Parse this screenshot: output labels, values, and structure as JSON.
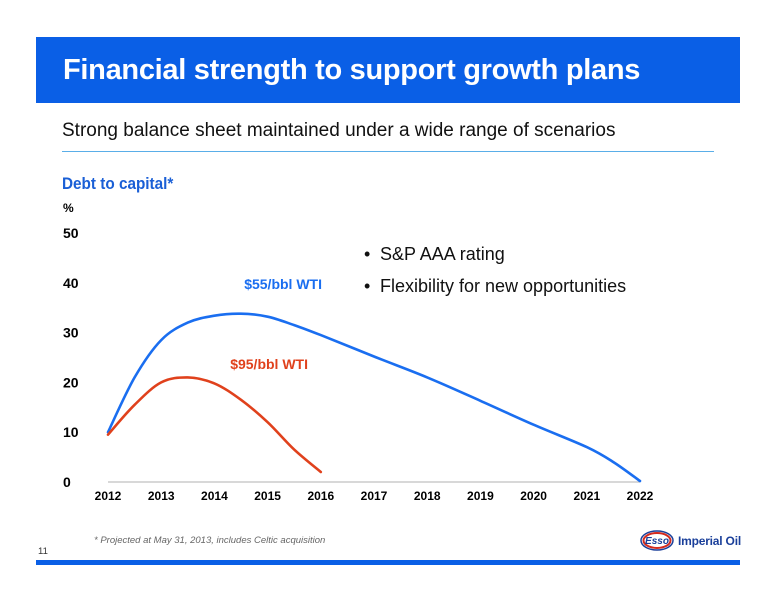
{
  "header": {
    "title": "Financial strength to support growth plans"
  },
  "subtitle": "Strong balance sheet maintained under a wide range of scenarios",
  "bullets": [
    "S&P  AAA  rating",
    "Flexibility for new opportunities"
  ],
  "footnote": "* Projected at May 31, 2013, includes Celtic acquisition",
  "page_number": "11",
  "brand": {
    "logo_text": "Esso",
    "name": "Imperial Oil"
  },
  "colors": {
    "header": "#0a5fe6",
    "blue_series": "#1a6ef0",
    "red_series": "#e0411c",
    "title": "#1a5fd6"
  },
  "chart_data": {
    "type": "line",
    "title": "Debt to capital*",
    "ylabel": "%",
    "xlabel": "",
    "ylim": [
      0,
      50
    ],
    "yticks": [
      0,
      10,
      20,
      30,
      40,
      50
    ],
    "xlim": [
      2012,
      2022
    ],
    "xticks": [
      2012,
      2013,
      2014,
      2015,
      2016,
      2017,
      2018,
      2019,
      2020,
      2021,
      2022
    ],
    "grid": false,
    "series": [
      {
        "name": "$55/bbl WTI",
        "color": "#1a6ef0",
        "x": [
          2012,
          2012.5,
          2013,
          2013.5,
          2014,
          2014.5,
          2015,
          2015.5,
          2016,
          2017,
          2018,
          2019,
          2020,
          2021,
          2021.5,
          2022
        ],
        "y": [
          10,
          21,
          28.5,
          32,
          33.4,
          33.8,
          33.2,
          31.5,
          29.5,
          25.2,
          21,
          16.3,
          11.5,
          7,
          4,
          0.2
        ]
      },
      {
        "name": "$95/bbl WTI",
        "color": "#e0411c",
        "x": [
          2012,
          2012.5,
          2013,
          2013.5,
          2014,
          2014.5,
          2015,
          2015.5,
          2016
        ],
        "y": [
          9.5,
          15.5,
          20,
          21,
          19.8,
          16.5,
          12,
          6.5,
          2
        ]
      }
    ]
  }
}
